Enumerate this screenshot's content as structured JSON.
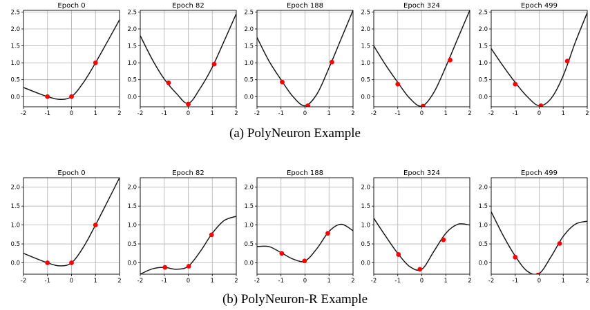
{
  "captions": {
    "a": "(a) PolyNeuron Example",
    "b": "(b) PolyNeuron-R Example"
  },
  "colors": {
    "curve": "#1a1a1a",
    "points": "#ff0000",
    "grid": "#b0b0b0"
  },
  "chart_data": [
    {
      "type": "line",
      "group": "a",
      "title": "Epoch 0",
      "xlim": [
        -2,
        2
      ],
      "ylim": [
        -0.3,
        2.55
      ],
      "xticks": [
        -2,
        -1,
        0,
        1,
        2
      ],
      "yticks": [
        0.0,
        0.5,
        1.0,
        1.5,
        2.0,
        2.5
      ],
      "grid": true,
      "curve_x": [
        -2,
        -1.5,
        -1,
        -0.5,
        0,
        0.5,
        1,
        1.5,
        2
      ],
      "curve_y": [
        0.27,
        0.13,
        0.0,
        -0.08,
        0.0,
        0.42,
        1.0,
        1.63,
        2.27
      ],
      "points": [
        [
          -1,
          0.0
        ],
        [
          0,
          0.0
        ],
        [
          1,
          1.0
        ]
      ]
    },
    {
      "type": "line",
      "group": "a",
      "title": "Epoch 82",
      "xlim": [
        -2,
        2
      ],
      "ylim": [
        -0.3,
        2.55
      ],
      "xticks": [
        -2,
        -1,
        0,
        1,
        2
      ],
      "yticks": [
        0.0,
        0.5,
        1.0,
        1.5,
        2.0,
        2.5
      ],
      "grid": true,
      "curve_x": [
        -2,
        -1.5,
        -1,
        -0.5,
        0,
        0.5,
        1,
        1.5,
        2
      ],
      "curve_y": [
        1.8,
        1.1,
        0.52,
        0.1,
        -0.2,
        0.25,
        0.87,
        1.65,
        2.45
      ],
      "points": [
        [
          -0.82,
          0.41
        ],
        [
          0,
          -0.22
        ],
        [
          1.08,
          0.96
        ]
      ]
    },
    {
      "type": "line",
      "group": "a",
      "title": "Epoch 188",
      "xlim": [
        -2,
        2
      ],
      "ylim": [
        -0.3,
        2.55
      ],
      "xticks": [
        -2,
        -1,
        0,
        1,
        2
      ],
      "yticks": [
        0.0,
        0.5,
        1.0,
        1.5,
        2.0,
        2.5
      ],
      "grid": true,
      "curve_x": [
        -2,
        -1.5,
        -1,
        -0.5,
        0,
        0.5,
        1,
        1.5,
        2
      ],
      "curve_y": [
        1.75,
        1.05,
        0.5,
        0.0,
        -0.27,
        0.08,
        0.85,
        1.7,
        2.55
      ],
      "points": [
        [
          -0.95,
          0.43
        ],
        [
          0.12,
          -0.27
        ],
        [
          1.12,
          1.02
        ]
      ]
    },
    {
      "type": "line",
      "group": "a",
      "title": "Epoch 324",
      "xlim": [
        -2,
        2
      ],
      "ylim": [
        -0.3,
        2.55
      ],
      "xticks": [
        -2,
        -1,
        0,
        1,
        2
      ],
      "yticks": [
        0.0,
        0.5,
        1.0,
        1.5,
        2.0,
        2.5
      ],
      "grid": true,
      "curve_x": [
        -2,
        -1.5,
        -1,
        -0.5,
        0,
        0.5,
        1,
        1.5,
        2
      ],
      "curve_y": [
        1.5,
        0.93,
        0.42,
        -0.05,
        -0.28,
        0.12,
        0.88,
        1.72,
        2.55
      ],
      "points": [
        [
          -1.0,
          0.37
        ],
        [
          0.05,
          -0.28
        ],
        [
          1.18,
          1.08
        ]
      ]
    },
    {
      "type": "line",
      "group": "a",
      "title": "Epoch 499",
      "xlim": [
        -2,
        2
      ],
      "ylim": [
        -0.3,
        2.55
      ],
      "xticks": [
        -2,
        -1,
        0,
        1,
        2
      ],
      "yticks": [
        0.0,
        0.5,
        1.0,
        1.5,
        2.0,
        2.5
      ],
      "grid": true,
      "curve_x": [
        -2,
        -1.5,
        -1,
        -0.5,
        0,
        0.5,
        1,
        1.5,
        2
      ],
      "curve_y": [
        1.42,
        0.9,
        0.42,
        0.0,
        -0.27,
        -0.05,
        0.62,
        1.6,
        2.48
      ],
      "points": [
        [
          -1.0,
          0.37
        ],
        [
          0.07,
          -0.27
        ],
        [
          1.17,
          1.05
        ]
      ]
    },
    {
      "type": "line",
      "group": "b",
      "title": "Epoch 0",
      "xlim": [
        -2,
        2
      ],
      "ylim": [
        -0.3,
        2.25
      ],
      "xticks": [
        -2,
        -1,
        0,
        1,
        2
      ],
      "yticks": [
        0.0,
        0.5,
        1.0,
        1.5,
        2.0
      ],
      "grid": true,
      "curve_x": [
        -2,
        -1.5,
        -1,
        -0.5,
        0,
        0.5,
        1,
        1.5,
        2
      ],
      "curve_y": [
        0.25,
        0.12,
        0.0,
        -0.08,
        0.0,
        0.42,
        1.0,
        1.62,
        2.25
      ],
      "points": [
        [
          -1,
          0.0
        ],
        [
          0,
          0.0
        ],
        [
          1,
          1.0
        ]
      ]
    },
    {
      "type": "line",
      "group": "b",
      "title": "Epoch 82",
      "xlim": [
        -2,
        2
      ],
      "ylim": [
        -0.3,
        2.25
      ],
      "xticks": [
        -2,
        -1,
        0,
        1,
        2
      ],
      "yticks": [
        0.0,
        0.5,
        1.0,
        1.5,
        2.0
      ],
      "grid": true,
      "curve_x": [
        -2,
        -1.5,
        -1,
        -0.5,
        0,
        0.5,
        1,
        1.5,
        2
      ],
      "curve_y": [
        -0.3,
        -0.16,
        -0.12,
        -0.17,
        -0.09,
        0.3,
        0.78,
        1.12,
        1.23
      ],
      "points": [
        [
          -0.97,
          -0.12
        ],
        [
          0.02,
          -0.09
        ],
        [
          0.97,
          0.74
        ]
      ]
    },
    {
      "type": "line",
      "group": "b",
      "title": "Epoch 188",
      "xlim": [
        -2,
        2
      ],
      "ylim": [
        -0.3,
        2.25
      ],
      "xticks": [
        -2,
        -1,
        0,
        1,
        2
      ],
      "yticks": [
        0.0,
        0.5,
        1.0,
        1.5,
        2.0
      ],
      "grid": true,
      "curve_x": [
        -2,
        -1.5,
        -1,
        -0.5,
        0,
        0.5,
        1,
        1.5,
        2
      ],
      "curve_y": [
        0.43,
        0.43,
        0.27,
        0.1,
        0.05,
        0.38,
        0.83,
        1.02,
        0.85
      ],
      "points": [
        [
          -0.97,
          0.25
        ],
        [
          -0.02,
          0.05
        ],
        [
          0.95,
          0.78
        ]
      ]
    },
    {
      "type": "line",
      "group": "b",
      "title": "Epoch 324",
      "xlim": [
        -2,
        2
      ],
      "ylim": [
        -0.3,
        2.25
      ],
      "xticks": [
        -2,
        -1,
        0,
        1,
        2
      ],
      "yticks": [
        0.0,
        0.5,
        1.0,
        1.5,
        2.0
      ],
      "grid": true,
      "curve_x": [
        -2,
        -1.5,
        -1,
        -0.5,
        0,
        0.5,
        1,
        1.5,
        2
      ],
      "curve_y": [
        1.18,
        0.7,
        0.25,
        -0.1,
        -0.17,
        0.3,
        0.78,
        1.02,
        1.0
      ],
      "points": [
        [
          -0.97,
          0.22
        ],
        [
          -0.08,
          -0.17
        ],
        [
          0.9,
          0.61
        ]
      ]
    },
    {
      "type": "line",
      "group": "b",
      "title": "Epoch 499",
      "xlim": [
        -2,
        2
      ],
      "ylim": [
        -0.3,
        2.25
      ],
      "xticks": [
        -2,
        -1,
        0,
        1,
        2
      ],
      "yticks": [
        0.0,
        0.5,
        1.0,
        1.5,
        2.0
      ],
      "grid": true,
      "curve_x": [
        -2,
        -1.5,
        -1,
        -0.5,
        0,
        0.5,
        1,
        1.5,
        2
      ],
      "curve_y": [
        1.35,
        0.72,
        0.18,
        -0.22,
        -0.28,
        0.17,
        0.7,
        1.02,
        1.1
      ],
      "points": [
        [
          -1.0,
          0.15
        ],
        [
          -0.05,
          -0.32
        ],
        [
          0.85,
          0.51
        ]
      ]
    }
  ]
}
